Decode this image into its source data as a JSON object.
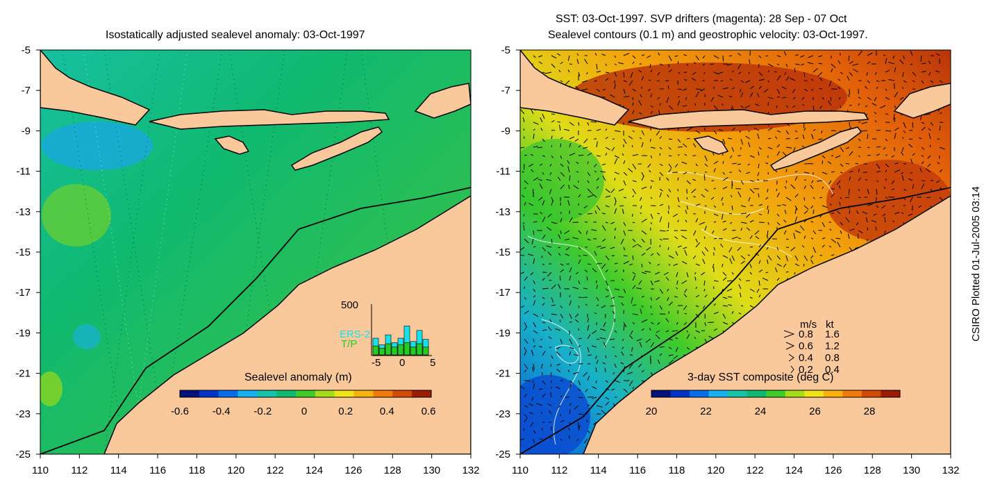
{
  "left_panel": {
    "title": "Isostatically adjusted sealevel anomaly: 03-Oct-1997",
    "colorbar": {
      "label": "Sealevel anomaly (m)",
      "ticks": [
        "-0.6",
        "-0.4",
        "-0.2",
        "0",
        "0.2",
        "0.4",
        "0.6"
      ],
      "colors": [
        "#00127a",
        "#0033c8",
        "#0a6de8",
        "#1ab0ee",
        "#17c2a8",
        "#10b96f",
        "#3ecb2b",
        "#a6dc1a",
        "#f0e21a",
        "#f7b20e",
        "#f07a0a",
        "#d24a06",
        "#9a1c02"
      ]
    },
    "inset": {
      "ymax_label": "500",
      "series": [
        "ERS-2",
        "T/P"
      ],
      "series_colors": [
        "#18e0e8",
        "#22cc22"
      ],
      "x_ticks": [
        "-5",
        "0",
        "5"
      ],
      "ers2": [
        150,
        90,
        180,
        110,
        150,
        260,
        120,
        220,
        140
      ],
      "tp": [
        80,
        60,
        100,
        70,
        90,
        110,
        70,
        100,
        70
      ]
    }
  },
  "right_panel": {
    "title_line1": "SST: 03-Oct-1997. SVP drifters (magenta): 28 Sep - 07 Oct",
    "title_line2": "Sealevel contours (0.1 m) and geostrophic velocity: 03-Oct-1997.",
    "colorbar": {
      "label": "3-day SST composite (deg C)",
      "ticks": [
        "20",
        "22",
        "24",
        "26",
        "28"
      ],
      "colors": [
        "#00127a",
        "#0033c8",
        "#0a6de8",
        "#1ab0ee",
        "#17c2a8",
        "#10b96f",
        "#3ecb2b",
        "#a6dc1a",
        "#f0e21a",
        "#f7b20e",
        "#f07a0a",
        "#d24a06",
        "#9a1c02"
      ]
    },
    "velocity_legend": {
      "header_ms": "m/s",
      "header_kt": "kt",
      "rows": [
        {
          "ms": "0.8",
          "kt": "1.6"
        },
        {
          "ms": "0.6",
          "kt": "1.2"
        },
        {
          "ms": "0.4",
          "kt": "0.8"
        },
        {
          "ms": "0.2",
          "kt": "0.4"
        }
      ]
    }
  },
  "axes": {
    "lat_ticks": [
      "-5",
      "-7",
      "-9",
      "-11",
      "-13",
      "-15",
      "-17",
      "-19",
      "-21",
      "-23",
      "-25"
    ],
    "lon_ticks": [
      "110",
      "112",
      "114",
      "116",
      "118",
      "120",
      "122",
      "124",
      "126",
      "128",
      "130",
      "132"
    ],
    "lat_range": [
      -25,
      -5
    ],
    "lon_range": [
      110,
      132
    ]
  },
  "credit": "CSIRO Plotted 01-Jul-2005 03:14",
  "colors": {
    "land": "#f9c99b",
    "ocean_left": "#12bc84",
    "ocean_right_warm": "#e9660a"
  }
}
